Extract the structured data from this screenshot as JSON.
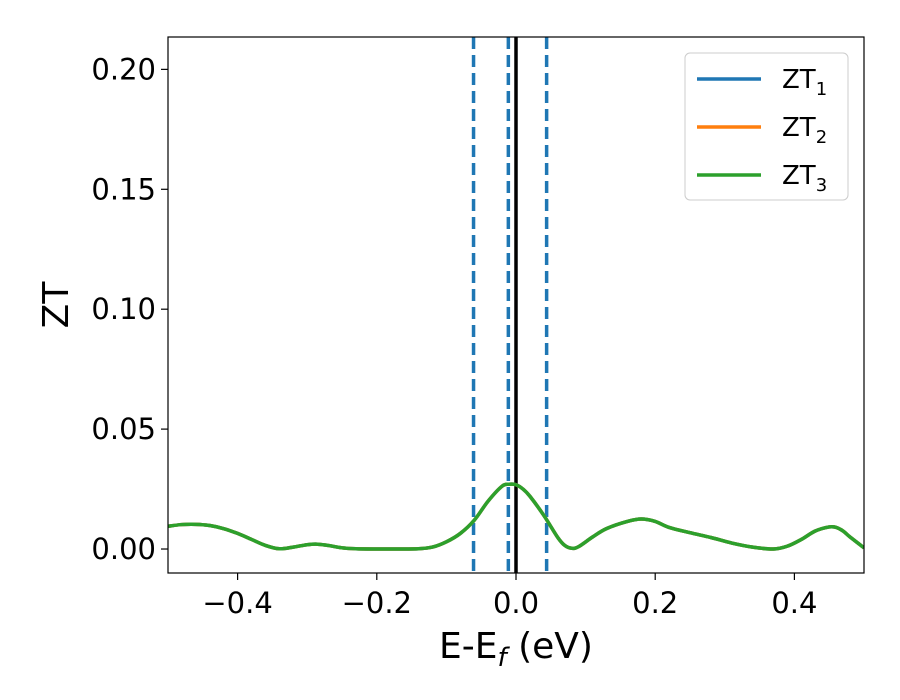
{
  "chart_data": {
    "type": "line",
    "xlabel_main": "E-E",
    "xlabel_sub": "f",
    "xlabel_unit": " (eV)",
    "ylabel": "ZT",
    "xlim": [
      -0.5,
      0.5
    ],
    "ylim": [
      -0.01,
      0.2135
    ],
    "xticks": [
      -0.4,
      -0.2,
      0.0,
      0.2,
      0.4
    ],
    "xtick_labels": [
      "−0.4",
      "−0.2",
      "0.0",
      "0.2",
      "0.4"
    ],
    "yticks": [
      0.0,
      0.05,
      0.1,
      0.15,
      0.2
    ],
    "ytick_labels": [
      "0.00",
      "0.05",
      "0.10",
      "0.15",
      "0.20"
    ],
    "grid": false,
    "legend_position": "top-right",
    "legend": [
      {
        "base": "ZT",
        "sub": "1",
        "color": "#1f77b4"
      },
      {
        "base": "ZT",
        "sub": "2",
        "color": "#ff7f0e"
      },
      {
        "base": "ZT",
        "sub": "3",
        "color": "#2ca02c"
      }
    ],
    "vertical_lines": [
      {
        "x": -0.061,
        "style": "dashed",
        "color": "#1f77b4"
      },
      {
        "x": -0.011,
        "style": "dashed",
        "color": "#1f77b4"
      },
      {
        "x": 0.0,
        "style": "solid",
        "color": "#000000"
      },
      {
        "x": 0.044,
        "style": "dashed",
        "color": "#1f77b4"
      }
    ],
    "series": [
      {
        "name": "ZT1",
        "color": "#1f77b4",
        "x": [
          -0.5,
          -0.48,
          -0.46,
          -0.44,
          -0.42,
          -0.4,
          -0.38,
          -0.36,
          -0.34,
          -0.32,
          -0.3,
          -0.285,
          -0.27,
          -0.25,
          -0.23,
          -0.2,
          -0.17,
          -0.14,
          -0.12,
          -0.1,
          -0.08,
          -0.06,
          -0.04,
          -0.02,
          -0.01,
          0.0,
          0.01,
          0.02,
          0.04,
          0.06,
          0.07,
          0.08,
          0.09,
          0.11,
          0.13,
          0.16,
          0.18,
          0.2,
          0.22,
          0.25,
          0.28,
          0.31,
          0.34,
          0.37,
          0.39,
          0.41,
          0.43,
          0.45,
          0.46,
          0.47,
          0.48,
          0.5
        ],
        "y": [
          0.0095,
          0.0102,
          0.0103,
          0.0098,
          0.0085,
          0.0065,
          0.004,
          0.0015,
          0.0001,
          0.0008,
          0.0018,
          0.002,
          0.0015,
          0.0005,
          0.0001,
          0.0,
          0.0,
          0.0001,
          0.0008,
          0.003,
          0.0065,
          0.012,
          0.02,
          0.0262,
          0.027,
          0.0268,
          0.025,
          0.022,
          0.014,
          0.0048,
          0.0015,
          0.0003,
          0.001,
          0.005,
          0.0085,
          0.0115,
          0.0125,
          0.0115,
          0.009,
          0.0068,
          0.0048,
          0.0025,
          0.0008,
          0.0,
          0.0012,
          0.004,
          0.0075,
          0.0092,
          0.009,
          0.0075,
          0.005,
          0.0005
        ]
      },
      {
        "name": "ZT2",
        "color": "#ff7f0e",
        "x": [
          -0.5,
          -0.48,
          -0.46,
          -0.44,
          -0.42,
          -0.4,
          -0.38,
          -0.36,
          -0.34,
          -0.32,
          -0.3,
          -0.285,
          -0.27,
          -0.25,
          -0.23,
          -0.2,
          -0.17,
          -0.14,
          -0.12,
          -0.1,
          -0.08,
          -0.06,
          -0.04,
          -0.02,
          -0.01,
          0.0,
          0.01,
          0.02,
          0.04,
          0.06,
          0.07,
          0.08,
          0.09,
          0.11,
          0.13,
          0.16,
          0.18,
          0.2,
          0.22,
          0.25,
          0.28,
          0.31,
          0.34,
          0.37,
          0.39,
          0.41,
          0.43,
          0.45,
          0.46,
          0.47,
          0.48,
          0.5
        ],
        "y": [
          0.0095,
          0.0102,
          0.0103,
          0.0098,
          0.0085,
          0.0065,
          0.004,
          0.0015,
          0.0001,
          0.0008,
          0.0018,
          0.002,
          0.0015,
          0.0005,
          0.0001,
          0.0,
          0.0,
          0.0001,
          0.0008,
          0.003,
          0.0065,
          0.012,
          0.02,
          0.0262,
          0.027,
          0.0268,
          0.025,
          0.022,
          0.014,
          0.0048,
          0.0015,
          0.0003,
          0.001,
          0.005,
          0.0085,
          0.0115,
          0.0125,
          0.0115,
          0.009,
          0.0068,
          0.0048,
          0.0025,
          0.0008,
          0.0,
          0.0012,
          0.004,
          0.0075,
          0.0092,
          0.009,
          0.0075,
          0.005,
          0.0005
        ]
      },
      {
        "name": "ZT3",
        "color": "#2ca02c",
        "x": [
          -0.5,
          -0.48,
          -0.46,
          -0.44,
          -0.42,
          -0.4,
          -0.38,
          -0.36,
          -0.34,
          -0.32,
          -0.3,
          -0.285,
          -0.27,
          -0.25,
          -0.23,
          -0.2,
          -0.17,
          -0.14,
          -0.12,
          -0.1,
          -0.08,
          -0.06,
          -0.04,
          -0.02,
          -0.01,
          0.0,
          0.01,
          0.02,
          0.04,
          0.06,
          0.07,
          0.08,
          0.09,
          0.11,
          0.13,
          0.16,
          0.18,
          0.2,
          0.22,
          0.25,
          0.28,
          0.31,
          0.34,
          0.37,
          0.39,
          0.41,
          0.43,
          0.45,
          0.46,
          0.47,
          0.48,
          0.5
        ],
        "y": [
          0.0095,
          0.0102,
          0.0103,
          0.0098,
          0.0085,
          0.0065,
          0.004,
          0.0015,
          0.0001,
          0.0008,
          0.0018,
          0.002,
          0.0015,
          0.0005,
          0.0001,
          0.0,
          0.0,
          0.0001,
          0.0008,
          0.003,
          0.0065,
          0.012,
          0.02,
          0.0262,
          0.027,
          0.0268,
          0.025,
          0.022,
          0.014,
          0.0048,
          0.0015,
          0.0003,
          0.001,
          0.005,
          0.0085,
          0.0115,
          0.0125,
          0.0115,
          0.009,
          0.0068,
          0.0048,
          0.0025,
          0.0008,
          0.0,
          0.0012,
          0.004,
          0.0075,
          0.0092,
          0.009,
          0.0075,
          0.005,
          0.0005
        ]
      }
    ]
  }
}
